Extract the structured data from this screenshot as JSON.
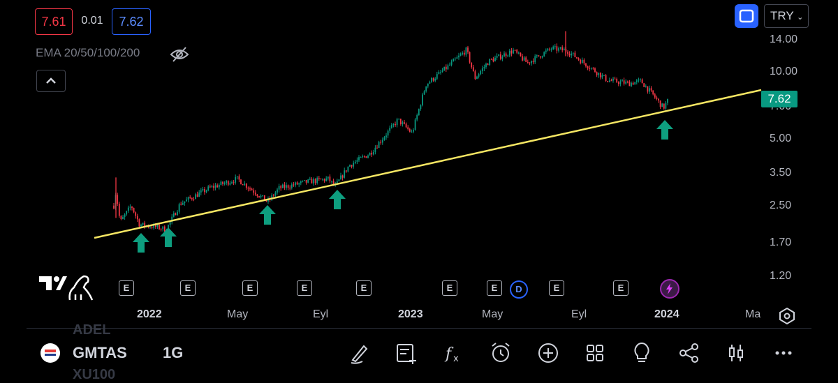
{
  "header": {
    "bid": "7.61",
    "spread": "0.01",
    "ask": "7.62",
    "indicator": "EMA 20/50/100/200",
    "currency": "TRY"
  },
  "chart_data": {
    "type": "candlestick",
    "scale": "log",
    "ylim": [
      1.05,
      15.5
    ],
    "y_ticks": [
      "14.00",
      "10.00",
      "7.00",
      "5.00",
      "3.50",
      "2.50",
      "1.70",
      "1.20"
    ],
    "x_ticks": [
      "2022",
      "May",
      "Eyl",
      "2023",
      "May",
      "Eyl",
      "2024",
      "Ma"
    ],
    "last_price": "7.62",
    "trendline": {
      "color": "#f5e663",
      "from": [
        "2021-11",
        1.8
      ],
      "to": [
        "2024-04",
        8.5
      ]
    },
    "support_arrows_at": [
      "2021-12",
      "2022-01",
      "2022-05",
      "2022-08",
      "2023-12"
    ],
    "events": [
      "E",
      "E",
      "E",
      "E",
      "E",
      "E",
      "E",
      "D",
      "E",
      "E"
    ]
  },
  "bottom_bar": {
    "prev_symbol": "ADEL",
    "symbol": "GMTAS",
    "next_symbol": "XU100",
    "interval": "1G",
    "tools": [
      "brush-icon",
      "add-note-icon",
      "fx-icon",
      "alarm-icon",
      "plus-circle-icon",
      "grid-icon",
      "bulb-icon",
      "share-icon",
      "candles-icon",
      "more-icon"
    ]
  },
  "colors": {
    "up": "#089981",
    "down": "#f23645",
    "trend": "#f5e663",
    "accent": "#2962ff"
  }
}
